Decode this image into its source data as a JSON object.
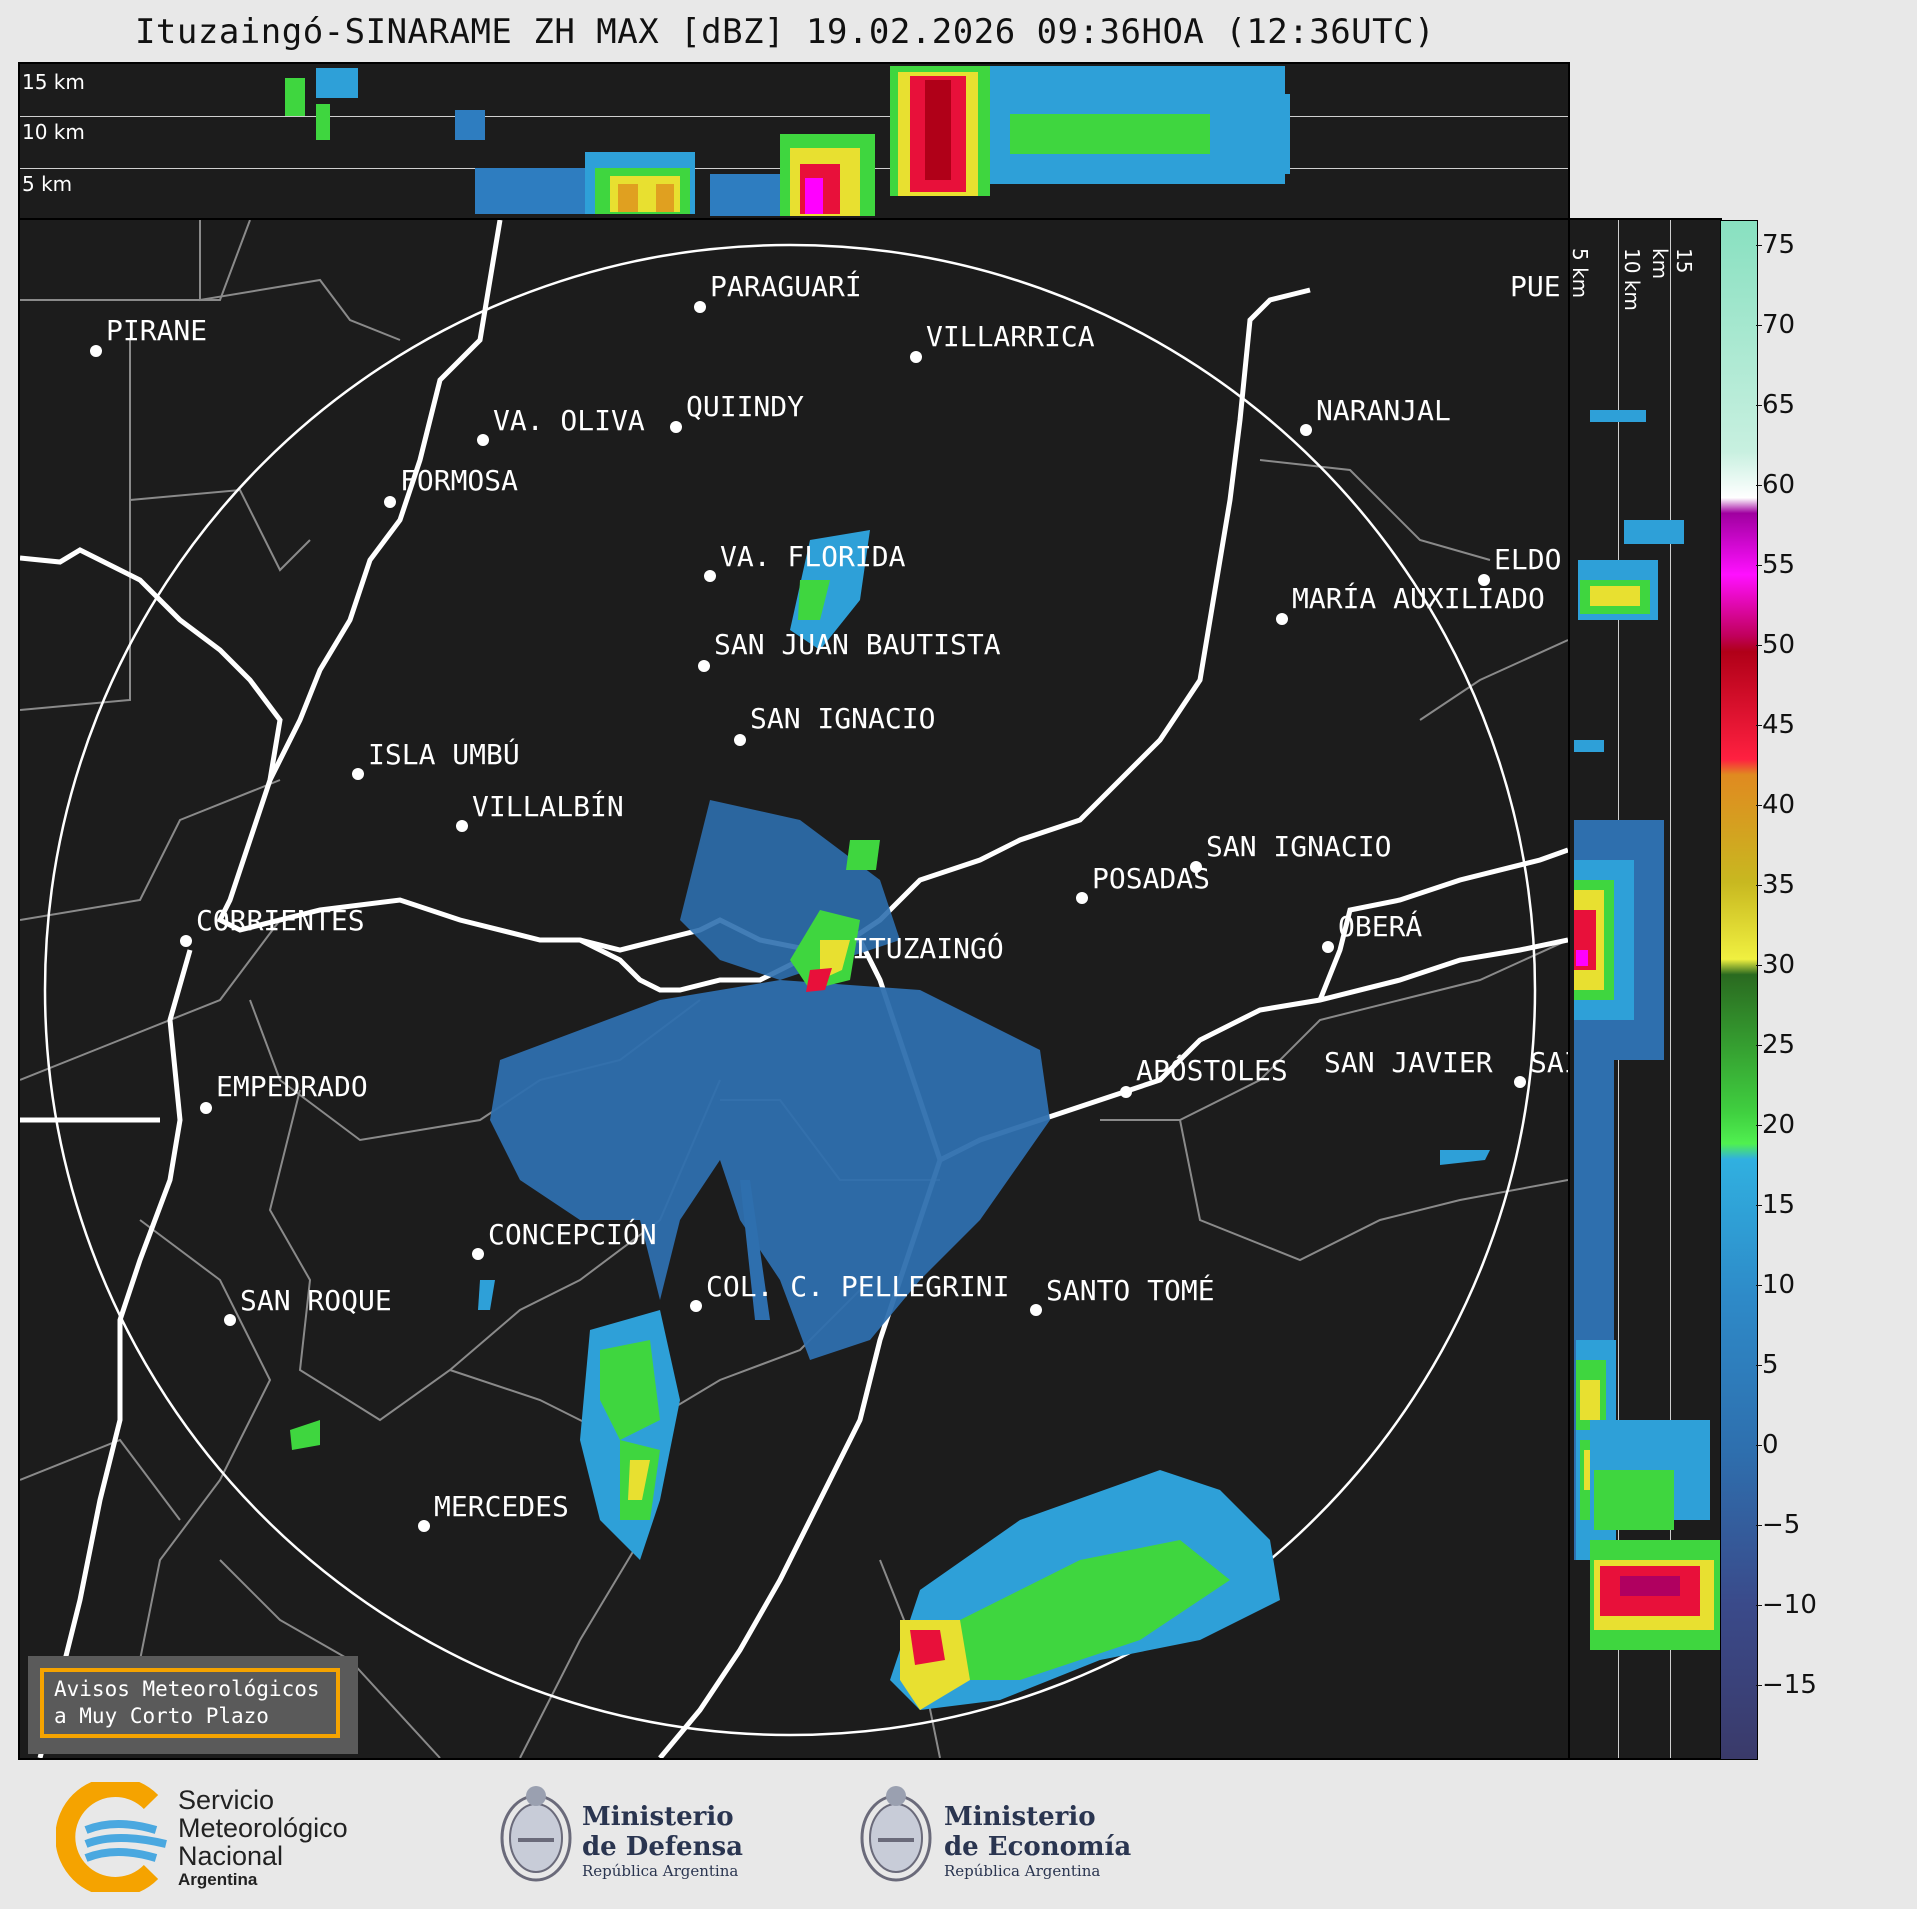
{
  "header": {
    "title": "Ituzaingó-SINARAME ZH MAX [dBZ] 19.02.2026 09:36HOA (12:36UTC)"
  },
  "top_panel": {
    "altitudes": [
      "15 km",
      "10 km",
      "5 km"
    ]
  },
  "side_panel": {
    "altitudes": [
      "5 km",
      "10 km",
      "15 km"
    ]
  },
  "colorbar": {
    "ticks": [
      "75",
      "70",
      "65",
      "60",
      "55",
      "50",
      "45",
      "40",
      "35",
      "30",
      "25",
      "20",
      "15",
      "10",
      "5",
      "0",
      "−5",
      "−10",
      "−15"
    ],
    "range": [
      -20,
      77
    ]
  },
  "map": {
    "cities": [
      {
        "name": "PIRANE"
      },
      {
        "name": "PARAGUARÍ"
      },
      {
        "name": "VILLARRICA"
      },
      {
        "name": "VA. OLIVA"
      },
      {
        "name": "QUIINDY"
      },
      {
        "name": "NARANJAL"
      },
      {
        "name": "PUE"
      },
      {
        "name": "FORMOSA"
      },
      {
        "name": "VA. FLORIDA"
      },
      {
        "name": "ELDO"
      },
      {
        "name": "MARÍA AUXILIADO"
      },
      {
        "name": "SAN JUAN BAUTISTA"
      },
      {
        "name": "SAN IGNACIO"
      },
      {
        "name": "ISLA UMBÚ"
      },
      {
        "name": "VILLALBÍN"
      },
      {
        "name": "SAN IGNACIO"
      },
      {
        "name": "POSADAS"
      },
      {
        "name": "CORRIENTES"
      },
      {
        "name": "ITUZAINGÓ"
      },
      {
        "name": "OBERÁ"
      },
      {
        "name": "APÓSTOLES"
      },
      {
        "name": "SAN JAVIER"
      },
      {
        "name": "SAI"
      },
      {
        "name": "EMPEDRADO"
      },
      {
        "name": "CONCEPCIÓN"
      },
      {
        "name": "COL. C. PELLEGRINI"
      },
      {
        "name": "SANTO TOMÉ"
      },
      {
        "name": "SAN ROQUE"
      },
      {
        "name": "MERCEDES"
      }
    ]
  },
  "notice": {
    "line1": "Avisos Meteorológicos",
    "line2": "a Muy Corto Plazo"
  },
  "logos": {
    "smn": {
      "line1": "Servicio",
      "line2": "Meteorológico",
      "line3": "Nacional",
      "line4": "Argentina"
    },
    "defensa": {
      "line1": "Ministerio",
      "line2": "de Defensa",
      "line3": "República Argentina"
    },
    "economia": {
      "line1": "Ministerio",
      "line2": "de Economía",
      "line3": "República Argentina"
    }
  },
  "colors": {
    "ring": "#ffffff",
    "border": "#ffffff",
    "district": "#8a8a8a",
    "accent": "#f5a300"
  }
}
